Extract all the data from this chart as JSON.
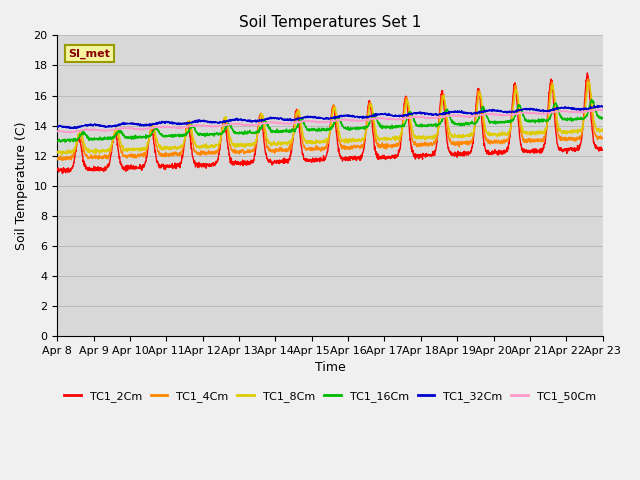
{
  "title": "Soil Temperatures Set 1",
  "xlabel": "Time",
  "ylabel": "Soil Temperature (C)",
  "ylim": [
    0,
    20
  ],
  "plot_bg_color": "#d8d8d8",
  "fig_bg_color": "#f0f0f0",
  "annotation_text": "SI_met",
  "annotation_bg": "#f5f5a0",
  "annotation_border": "#999900",
  "annotation_text_color": "#880000",
  "series_colors": [
    "#ff0000",
    "#ff8800",
    "#ddcc00",
    "#00bb00",
    "#0000cc",
    "#ff99cc"
  ],
  "series_labels": [
    "TC1_2Cm",
    "TC1_4Cm",
    "TC1_8Cm",
    "TC1_16Cm",
    "TC1_32Cm",
    "TC1_50Cm"
  ],
  "xtick_labels": [
    "Apr 8",
    "Apr 9",
    "Apr 10",
    "Apr 11",
    "Apr 12",
    "Apr 13",
    "Apr 14",
    "Apr 15",
    "Apr 16",
    "Apr 17",
    "Apr 18",
    "Apr 19",
    "Apr 20",
    "Apr 21",
    "Apr 22",
    "Apr 23"
  ],
  "grid_color": "#bbbbbb",
  "linewidth": 1.0
}
